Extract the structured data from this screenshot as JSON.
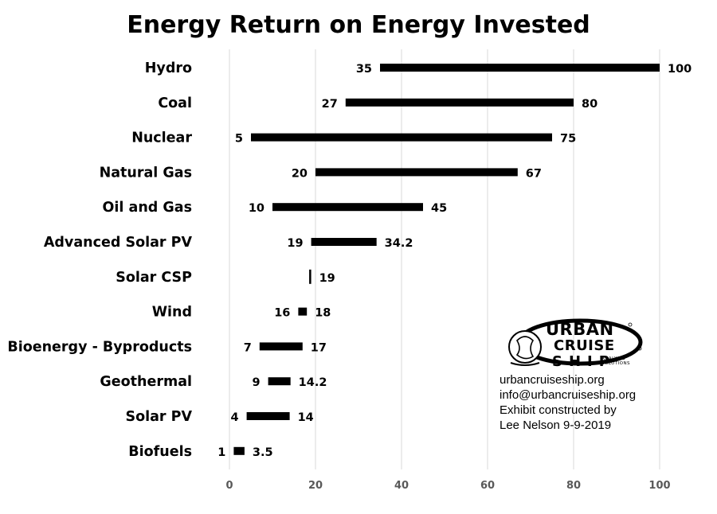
{
  "chart_data": {
    "type": "bar",
    "title": "Energy Return on Energy Invested",
    "xlabel": "",
    "ylabel": "",
    "xlim": [
      0,
      100
    ],
    "x_ticks": [
      "0",
      "20",
      "40",
      "60",
      "80",
      "100"
    ],
    "grid": true,
    "categories": [
      "Hydro",
      "Coal",
      "Nuclear",
      "Natural Gas",
      "Oil and Gas",
      "Advanced Solar PV",
      "Solar CSP",
      "Wind",
      "Bioenergy - Byproducts",
      "Geothermal",
      "Solar PV",
      "Biofuels"
    ],
    "series": [
      {
        "low": [
          35,
          27,
          5,
          20,
          10,
          19,
          null,
          16,
          7,
          9,
          4,
          1
        ],
        "high": [
          100,
          80,
          75,
          67,
          45,
          34.2,
          19,
          18,
          17,
          14.2,
          14,
          3.5
        ],
        "low_labels": [
          "35",
          "27",
          "5",
          "20",
          "10",
          "19",
          "",
          "16",
          "7",
          "9",
          "4",
          "1"
        ],
        "high_labels": [
          "100",
          "80",
          "75",
          "67",
          "45",
          "34.2",
          "19",
          "18",
          "17",
          "14.2",
          "14",
          "3.5"
        ]
      }
    ],
    "bar_color": "#000000",
    "grid_color": "#d9d9d9"
  },
  "logo": {
    "line1": "URBAN",
    "line2": "CRUISE",
    "line3": "SHIP",
    "sub": "ANALYSIS SOLUTIONS"
  },
  "info": {
    "website": "urbancruiseship.org",
    "email": "info@urbancruiseship.org",
    "credit_line1": "Exhibit constructed by",
    "credit_line2": "Lee Nelson 9-9-2019"
  }
}
